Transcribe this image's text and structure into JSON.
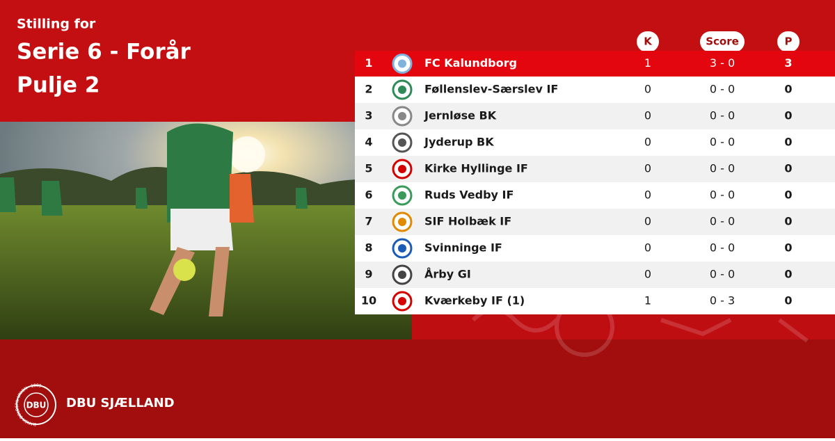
{
  "header": {
    "kicker": "Stilling for",
    "title_line1": "Serie 6 - Forår",
    "title_line2": "Pulje 2"
  },
  "table": {
    "columns": {
      "k": "K",
      "score": "Score",
      "p": "P"
    },
    "rows": [
      {
        "rank": 1,
        "team": "FC Kalundborg",
        "k": 1,
        "score": "3 - 0",
        "p": 3
      },
      {
        "rank": 2,
        "team": "Føllenslev-Særslev IF",
        "k": 0,
        "score": "0 - 0",
        "p": 0
      },
      {
        "rank": 3,
        "team": "Jernløse BK",
        "k": 0,
        "score": "0 - 0",
        "p": 0
      },
      {
        "rank": 4,
        "team": "Jyderup BK",
        "k": 0,
        "score": "0 - 0",
        "p": 0
      },
      {
        "rank": 5,
        "team": "Kirke Hyllinge IF",
        "k": 0,
        "score": "0 - 0",
        "p": 0
      },
      {
        "rank": 6,
        "team": "Ruds Vedby IF",
        "k": 0,
        "score": "0 - 0",
        "p": 0
      },
      {
        "rank": 7,
        "team": "SIF Holbæk IF",
        "k": 0,
        "score": "0 - 0",
        "p": 0
      },
      {
        "rank": 8,
        "team": "Svinninge IF",
        "k": 0,
        "score": "0 - 0",
        "p": 0
      },
      {
        "rank": 9,
        "team": "Årby GI",
        "k": 0,
        "score": "0 - 0",
        "p": 0
      },
      {
        "rank": 10,
        "team": "Kværkeby IF (1)",
        "k": 1,
        "score": "0 - 3",
        "p": 0
      }
    ]
  },
  "footer": {
    "logo_text": "DBU",
    "logo_ring": "DANSK BOLDSPIL-UNION · 1889",
    "brand": "DBU SJÆLLAND"
  }
}
